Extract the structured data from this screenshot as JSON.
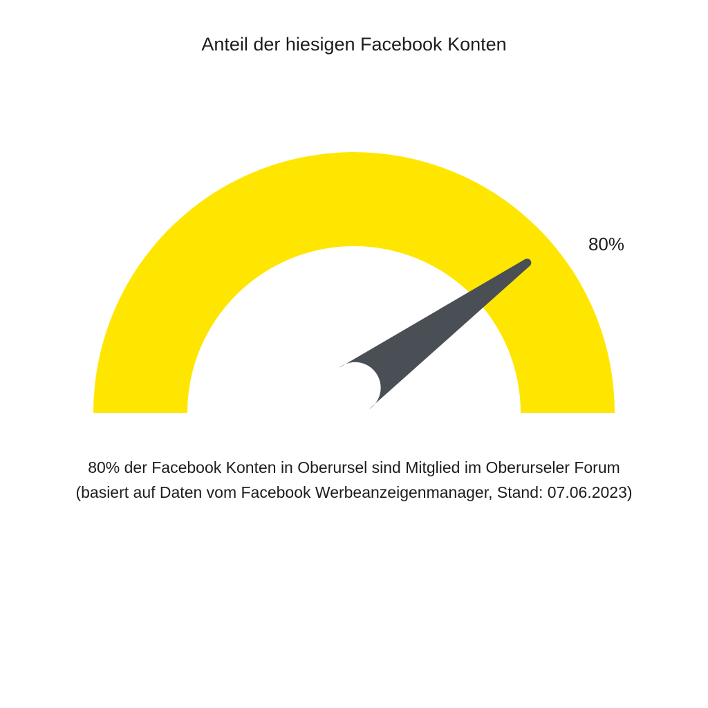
{
  "chart_data": {
    "type": "gauge",
    "title": "Anteil der hiesigen Facebook Konten",
    "value": 80,
    "value_label": "80%",
    "range": [
      0,
      100
    ],
    "caption": [
      "80% der Facebook Konten in Oberursel sind Mitglied im Oberurseler Forum",
      "(basiert auf Daten vom Facebook Werbeanzeigenmanager, Stand: 07.06.2023)"
    ]
  },
  "colors": {
    "arc": "#ffe600",
    "needle": "#4a4f55",
    "text": "#1c1c1c",
    "background": "#ffffff"
  }
}
